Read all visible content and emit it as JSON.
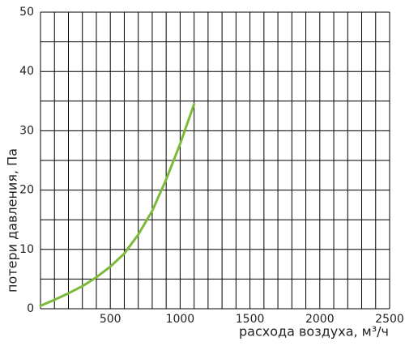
{
  "chart_data": {
    "type": "line",
    "x_label": "расхода воздуха, м³/ч",
    "y_label": "потери давления, Па",
    "x": [
      0,
      100,
      200,
      300,
      400,
      500,
      600,
      700,
      800,
      900,
      1000,
      1100
    ],
    "series": [
      {
        "color": "#7cba3a",
        "values": [
          0.5,
          1.5,
          2.6,
          3.8,
          5.3,
          7.1,
          9.3,
          12.5,
          16.5,
          21.8,
          27.8,
          34.5
        ]
      }
    ],
    "xlim": [
      0,
      2500
    ],
    "xticks": [
      500,
      1000,
      1500,
      2000,
      2500
    ],
    "xgrid": [
      0,
      100,
      200,
      300,
      400,
      500,
      600,
      700,
      800,
      900,
      1000,
      1100,
      1200,
      1300,
      1400,
      1500,
      1600,
      1700,
      1800,
      1900,
      2000,
      2100,
      2200,
      2300,
      2400,
      2500
    ],
    "ylim": [
      0,
      50
    ],
    "yticks": [
      0,
      10,
      20,
      30,
      40,
      50
    ],
    "ygrid": [
      0,
      5,
      10,
      15,
      20,
      25,
      30,
      35,
      40,
      45,
      50
    ],
    "grid": true
  }
}
